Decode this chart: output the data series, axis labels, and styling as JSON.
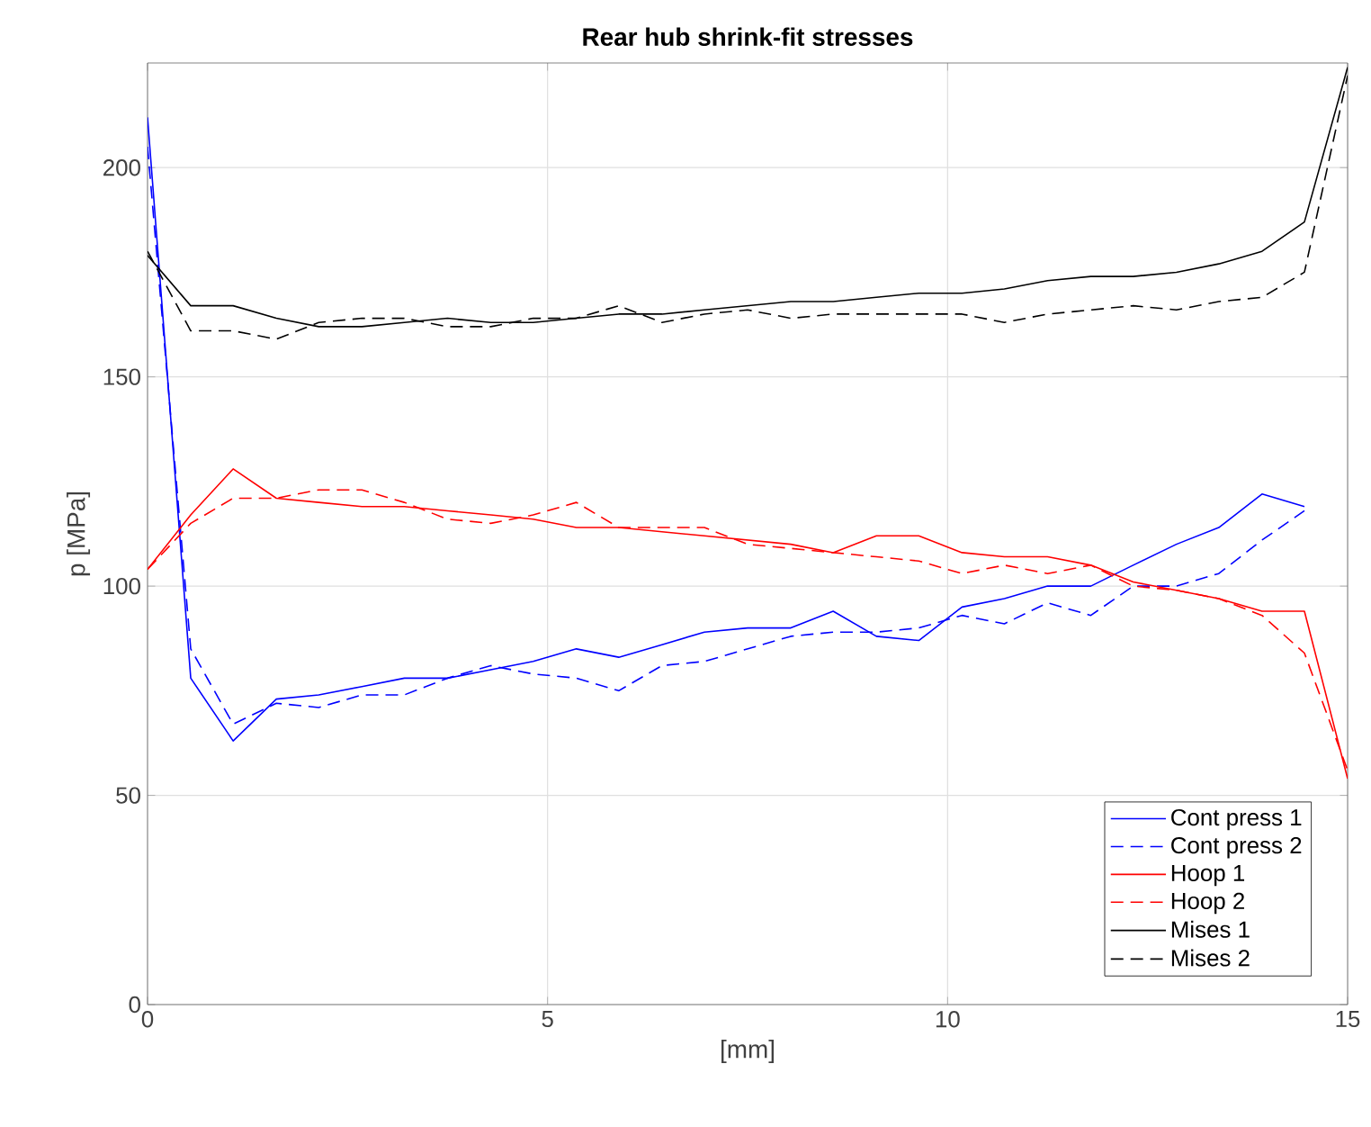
{
  "chart_data": {
    "type": "line",
    "title": "**Rear hub shrink-fit stresses**",
    "xlabel": "[mm]",
    "ylabel": "p [MPa]",
    "x": [
      0,
      0.54,
      1.07,
      1.61,
      2.14,
      2.68,
      3.21,
      3.75,
      4.29,
      4.82,
      5.36,
      5.89,
      6.43,
      6.96,
      7.5,
      8.04,
      8.57,
      9.11,
      9.64,
      10.18,
      10.71,
      11.25,
      11.79,
      12.32,
      12.86,
      13.39,
      13.93,
      14.46,
      15
    ],
    "series": [
      {
        "name": "Cont press 1",
        "color": "#0000ff",
        "line_style": "solid",
        "values": [
          212,
          78,
          63,
          73,
          74,
          76,
          78,
          78,
          80,
          82,
          85,
          83,
          86,
          89,
          90,
          90,
          94,
          88,
          87,
          95,
          97,
          100,
          100,
          105,
          110,
          114,
          122,
          119,
          null
        ]
      },
      {
        "name": "Cont press 2",
        "color": "#0000ff",
        "line_style": "dashed",
        "values": [
          205,
          85,
          67,
          72,
          71,
          74,
          74,
          78,
          81,
          79,
          78,
          75,
          81,
          82,
          85,
          88,
          89,
          89,
          90,
          93,
          91,
          96,
          93,
          100,
          100,
          103,
          111,
          118,
          null
        ]
      },
      {
        "name": "Hoop 1",
        "color": "#ff0000",
        "line_style": "solid",
        "values": [
          104,
          117,
          128,
          121,
          120,
          119,
          119,
          118,
          117,
          116,
          114,
          114,
          113,
          112,
          111,
          110,
          108,
          112,
          112,
          108,
          107,
          107,
          105,
          101,
          99,
          97,
          94,
          94,
          54
        ]
      },
      {
        "name": "Hoop 2",
        "color": "#ff0000",
        "line_style": "dashed",
        "values": [
          104,
          115,
          121,
          121,
          123,
          123,
          120,
          116,
          115,
          117,
          120,
          114,
          114,
          114,
          110,
          109,
          108,
          107,
          106,
          103,
          105,
          103,
          105,
          100,
          99,
          97,
          93,
          84,
          56
        ]
      },
      {
        "name": "Mises 1",
        "color": "#000000",
        "line_style": "solid",
        "values": [
          179,
          167,
          167,
          164,
          162,
          162,
          163,
          164,
          163,
          163,
          164,
          165,
          165,
          166,
          167,
          168,
          168,
          169,
          170,
          170,
          171,
          173,
          174,
          174,
          175,
          177,
          180,
          187,
          224
        ]
      },
      {
        "name": "Mises 2",
        "color": "#000000",
        "line_style": "dashed",
        "values": [
          180,
          161,
          161,
          159,
          163,
          164,
          164,
          162,
          162,
          164,
          164,
          167,
          163,
          165,
          166,
          164,
          165,
          165,
          165,
          165,
          163,
          165,
          166,
          167,
          166,
          168,
          169,
          175,
          222
        ]
      }
    ],
    "xlim": [
      0,
      15
    ],
    "ylim": [
      0,
      225
    ],
    "xticks": [
      0,
      5,
      10,
      15
    ],
    "yticks": [
      0,
      50,
      100,
      150,
      200
    ],
    "grid": true,
    "legend": "bottom right",
    "marker": "none"
  }
}
